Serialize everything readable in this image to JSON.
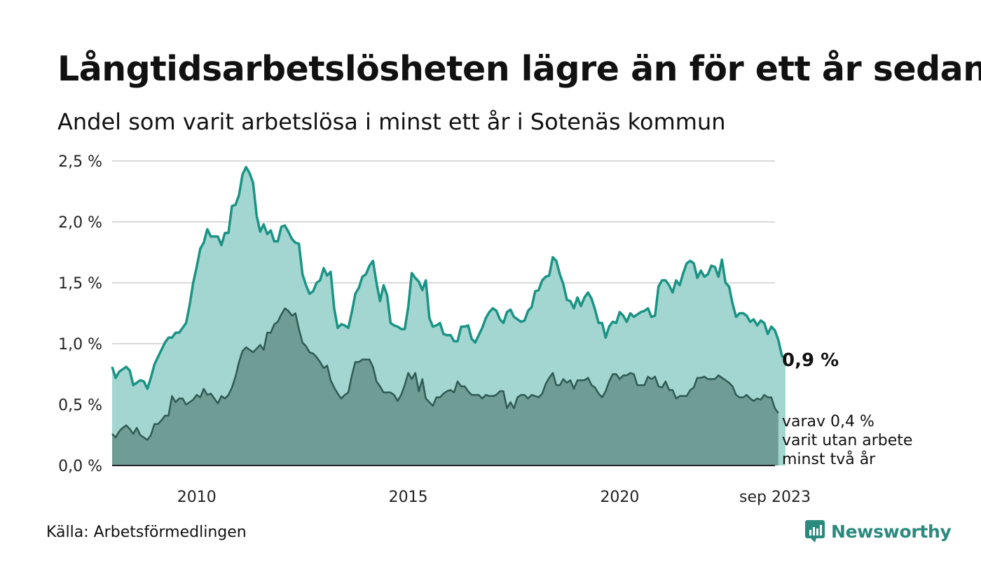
{
  "title": "Långtidsarbetslösheten lägre än för ett år sedan",
  "subtitle": "Andel som varit arbetslösa i minst ett år i Sotenäs kommun",
  "source": "Källa: Arbetsförmedlingen",
  "brand": {
    "name": "Newsworthy",
    "icon": "newsworthy-logo-icon"
  },
  "colors": {
    "series1_line": "#1a9385",
    "series1_fill": "#a3d6d0",
    "series2_line": "#2f5a53",
    "series2_fill": "#6f9d95",
    "grid": "#d9d9d9",
    "brand": "#2a8a7d"
  },
  "chart_data": {
    "type": "area",
    "x_start": 2008.0,
    "x_step_months": 1,
    "x_end_label": "sep 2023",
    "xlim": [
      2008.0,
      2023.67
    ],
    "ylim": [
      0,
      2.5
    ],
    "y_ticks": [
      "0,0 %",
      "0,5 %",
      "1,0 %",
      "1,5 %",
      "2,0 %",
      "2,5 %"
    ],
    "x_ticks": [
      "2010",
      "2015",
      "2020",
      "sep 2023"
    ],
    "end_labels": {
      "main": "0,9 %",
      "sub": [
        "varav 0,4 %",
        "varit utan arbete",
        "minst två år"
      ]
    },
    "series": [
      {
        "name": "minst ett år",
        "values": [
          0.81,
          0.72,
          0.77,
          0.79,
          0.81,
          0.78,
          0.66,
          0.68,
          0.7,
          0.69,
          0.63,
          0.72,
          0.83,
          0.89,
          0.95,
          1.01,
          1.05,
          1.05,
          1.09,
          1.09,
          1.13,
          1.17,
          1.32,
          1.5,
          1.63,
          1.78,
          1.83,
          1.94,
          1.88,
          1.88,
          1.88,
          1.81,
          1.91,
          1.91,
          2.13,
          2.14,
          2.22,
          2.39,
          2.45,
          2.4,
          2.32,
          2.05,
          1.92,
          1.98,
          1.9,
          1.93,
          1.84,
          1.84,
          1.96,
          1.97,
          1.92,
          1.86,
          1.83,
          1.82,
          1.57,
          1.48,
          1.41,
          1.43,
          1.5,
          1.52,
          1.62,
          1.56,
          1.59,
          1.29,
          1.13,
          1.16,
          1.15,
          1.13,
          1.26,
          1.41,
          1.46,
          1.55,
          1.57,
          1.64,
          1.68,
          1.5,
          1.35,
          1.48,
          1.4,
          1.17,
          1.15,
          1.14,
          1.12,
          1.12,
          1.3,
          1.58,
          1.54,
          1.51,
          1.44,
          1.52,
          1.21,
          1.14,
          1.15,
          1.17,
          1.08,
          1.07,
          1.07,
          1.02,
          1.02,
          1.14,
          1.14,
          1.15,
          1.04,
          1.01,
          1.07,
          1.13,
          1.21,
          1.26,
          1.29,
          1.27,
          1.2,
          1.17,
          1.26,
          1.28,
          1.22,
          1.2,
          1.18,
          1.19,
          1.27,
          1.3,
          1.43,
          1.44,
          1.52,
          1.55,
          1.56,
          1.71,
          1.68,
          1.57,
          1.49,
          1.36,
          1.35,
          1.29,
          1.38,
          1.31,
          1.38,
          1.42,
          1.37,
          1.28,
          1.17,
          1.17,
          1.05,
          1.14,
          1.18,
          1.17,
          1.26,
          1.23,
          1.18,
          1.25,
          1.22,
          1.24,
          1.26,
          1.27,
          1.29,
          1.22,
          1.23,
          1.47,
          1.52,
          1.52,
          1.48,
          1.42,
          1.52,
          1.48,
          1.58,
          1.66,
          1.68,
          1.66,
          1.54,
          1.6,
          1.55,
          1.57,
          1.64,
          1.63,
          1.55,
          1.69,
          1.5,
          1.47,
          1.33,
          1.22,
          1.25,
          1.25,
          1.23,
          1.18,
          1.2,
          1.15,
          1.19,
          1.17,
          1.08,
          1.14,
          1.11,
          1.03,
          0.9,
          0.88
        ]
      },
      {
        "name": "minst två år",
        "values": [
          0.26,
          0.23,
          0.28,
          0.31,
          0.33,
          0.3,
          0.26,
          0.31,
          0.25,
          0.23,
          0.21,
          0.25,
          0.34,
          0.34,
          0.37,
          0.41,
          0.41,
          0.57,
          0.52,
          0.55,
          0.55,
          0.5,
          0.52,
          0.54,
          0.58,
          0.56,
          0.63,
          0.58,
          0.59,
          0.55,
          0.51,
          0.57,
          0.55,
          0.58,
          0.64,
          0.73,
          0.85,
          0.94,
          0.97,
          0.95,
          0.93,
          0.96,
          0.99,
          0.95,
          1.09,
          1.09,
          1.16,
          1.18,
          1.24,
          1.29,
          1.27,
          1.23,
          1.25,
          1.12,
          1.01,
          0.98,
          0.93,
          0.92,
          0.89,
          0.85,
          0.8,
          0.82,
          0.7,
          0.64,
          0.59,
          0.55,
          0.58,
          0.6,
          0.74,
          0.85,
          0.85,
          0.87,
          0.87,
          0.87,
          0.81,
          0.69,
          0.65,
          0.6,
          0.6,
          0.6,
          0.58,
          0.53,
          0.58,
          0.66,
          0.76,
          0.71,
          0.76,
          0.61,
          0.71,
          0.55,
          0.52,
          0.49,
          0.56,
          0.56,
          0.59,
          0.61,
          0.62,
          0.6,
          0.69,
          0.65,
          0.65,
          0.61,
          0.58,
          0.58,
          0.58,
          0.55,
          0.58,
          0.57,
          0.57,
          0.58,
          0.61,
          0.61,
          0.47,
          0.52,
          0.47,
          0.56,
          0.58,
          0.58,
          0.55,
          0.58,
          0.57,
          0.56,
          0.59,
          0.67,
          0.72,
          0.76,
          0.66,
          0.66,
          0.71,
          0.68,
          0.7,
          0.63,
          0.7,
          0.7,
          0.7,
          0.72,
          0.66,
          0.64,
          0.59,
          0.56,
          0.61,
          0.69,
          0.75,
          0.75,
          0.71,
          0.74,
          0.74,
          0.76,
          0.75,
          0.66,
          0.66,
          0.66,
          0.73,
          0.71,
          0.73,
          0.65,
          0.64,
          0.69,
          0.62,
          0.62,
          0.55,
          0.57,
          0.57,
          0.57,
          0.62,
          0.64,
          0.72,
          0.72,
          0.73,
          0.71,
          0.71,
          0.71,
          0.74,
          0.72,
          0.7,
          0.68,
          0.65,
          0.58,
          0.56,
          0.56,
          0.58,
          0.55,
          0.53,
          0.55,
          0.54,
          0.58,
          0.56,
          0.56,
          0.47,
          0.43
        ]
      }
    ]
  }
}
